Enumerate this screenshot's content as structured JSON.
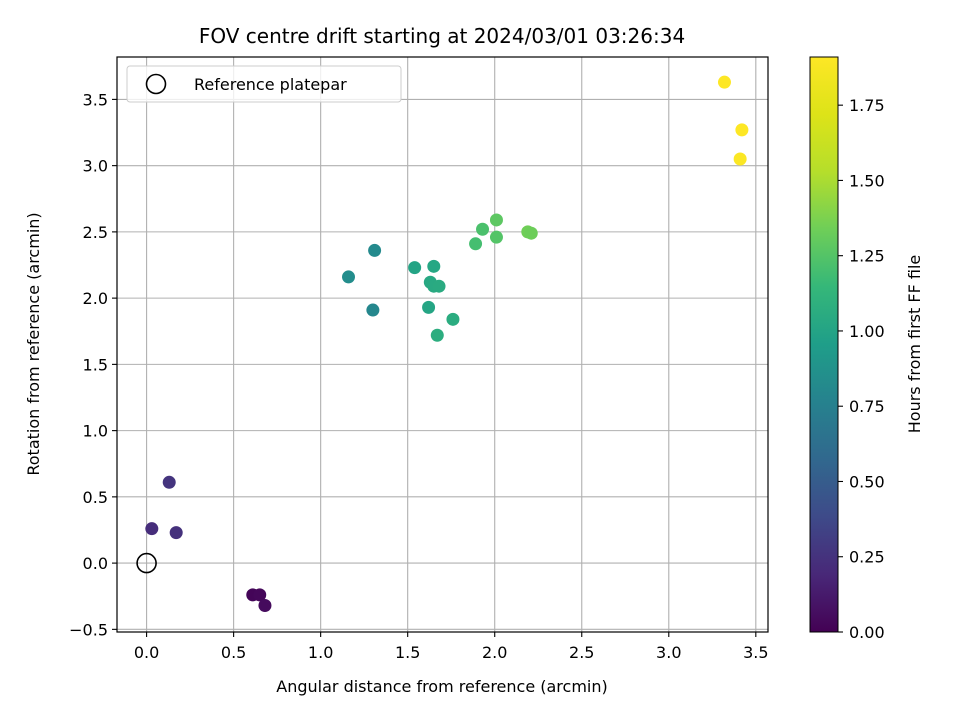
{
  "chart_data": {
    "type": "scatter",
    "title": "FOV centre drift starting at 2024/03/01 03:26:34",
    "xlabel": "Angular distance from reference (arcmin)",
    "ylabel": "Rotation from reference (arcmin)",
    "xlim": [
      -0.17,
      3.57
    ],
    "ylim": [
      -0.52,
      3.82
    ],
    "xticks": [
      0.0,
      0.5,
      1.0,
      1.5,
      2.0,
      2.5,
      3.0,
      3.5
    ],
    "xtick_labels": [
      "0.0",
      "0.5",
      "1.0",
      "1.5",
      "2.0",
      "2.5",
      "3.0",
      "3.5"
    ],
    "yticks": [
      -0.5,
      0.0,
      0.5,
      1.0,
      1.5,
      2.0,
      2.5,
      3.0,
      3.5
    ],
    "ytick_labels": [
      "−0.5",
      "0.0",
      "0.5",
      "1.0",
      "1.5",
      "2.0",
      "2.5",
      "3.0",
      "3.5"
    ],
    "grid": true,
    "colormap": "viridis",
    "colorbar": {
      "label": "Hours from first FF file",
      "range": [
        0.0,
        1.91
      ],
      "ticks": [
        0.0,
        0.25,
        0.5,
        0.75,
        1.0,
        1.25,
        1.5,
        1.75
      ],
      "tick_labels": [
        "0.00",
        "0.25",
        "0.50",
        "0.75",
        "1.00",
        "1.25",
        "1.50",
        "1.75"
      ]
    },
    "legend": {
      "placement": "top-left",
      "entries": [
        {
          "label": "Reference platepar",
          "marker": "hollow-circle",
          "color": "#000000"
        }
      ]
    },
    "reference_point": {
      "x": 0.0,
      "y": 0.0
    },
    "points": [
      {
        "x": 0.61,
        "y": -0.24,
        "hours": 0.02
      },
      {
        "x": 0.65,
        "y": -0.24,
        "hours": 0.03
      },
      {
        "x": 0.68,
        "y": -0.32,
        "hours": 0.05
      },
      {
        "x": 0.03,
        "y": 0.26,
        "hours": 0.22
      },
      {
        "x": 0.17,
        "y": 0.23,
        "hours": 0.24
      },
      {
        "x": 0.13,
        "y": 0.61,
        "hours": 0.26
      },
      {
        "x": 1.3,
        "y": 1.91,
        "hours": 0.8
      },
      {
        "x": 1.16,
        "y": 2.16,
        "hours": 0.84
      },
      {
        "x": 1.31,
        "y": 2.36,
        "hours": 0.82
      },
      {
        "x": 1.54,
        "y": 2.23,
        "hours": 1.0
      },
      {
        "x": 1.65,
        "y": 2.24,
        "hours": 1.02
      },
      {
        "x": 1.63,
        "y": 2.12,
        "hours": 1.03
      },
      {
        "x": 1.65,
        "y": 2.09,
        "hours": 1.04
      },
      {
        "x": 1.68,
        "y": 2.09,
        "hours": 1.05
      },
      {
        "x": 1.62,
        "y": 1.93,
        "hours": 1.01
      },
      {
        "x": 1.76,
        "y": 1.84,
        "hours": 1.06
      },
      {
        "x": 1.67,
        "y": 1.72,
        "hours": 1.07
      },
      {
        "x": 1.89,
        "y": 2.41,
        "hours": 1.2
      },
      {
        "x": 1.93,
        "y": 2.52,
        "hours": 1.22
      },
      {
        "x": 2.01,
        "y": 2.59,
        "hours": 1.28
      },
      {
        "x": 2.01,
        "y": 2.46,
        "hours": 1.25
      },
      {
        "x": 2.19,
        "y": 2.5,
        "hours": 1.34
      },
      {
        "x": 2.21,
        "y": 2.49,
        "hours": 1.33
      },
      {
        "x": 3.32,
        "y": 3.63,
        "hours": 1.91
      },
      {
        "x": 3.42,
        "y": 3.27,
        "hours": 1.91
      },
      {
        "x": 3.41,
        "y": 3.05,
        "hours": 1.9
      }
    ]
  }
}
